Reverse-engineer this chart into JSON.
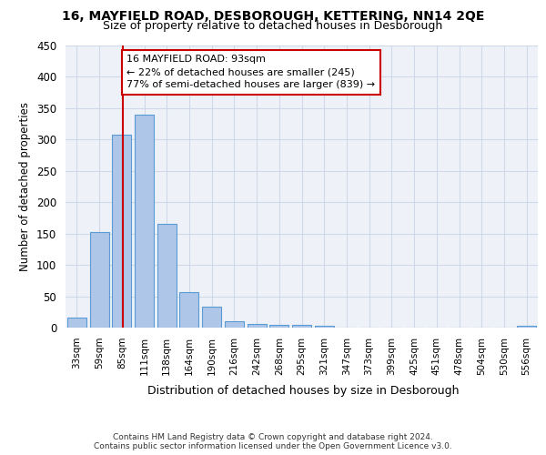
{
  "title1": "16, MAYFIELD ROAD, DESBOROUGH, KETTERING, NN14 2QE",
  "title2": "Size of property relative to detached houses in Desborough",
  "xlabel": "Distribution of detached houses by size in Desborough",
  "ylabel": "Number of detached properties",
  "bar_labels": [
    "33sqm",
    "59sqm",
    "85sqm",
    "111sqm",
    "138sqm",
    "164sqm",
    "190sqm",
    "216sqm",
    "242sqm",
    "268sqm",
    "295sqm",
    "321sqm",
    "347sqm",
    "373sqm",
    "399sqm",
    "425sqm",
    "451sqm",
    "478sqm",
    "504sqm",
    "530sqm",
    "556sqm"
  ],
  "bar_values": [
    16,
    152,
    308,
    340,
    165,
    57,
    34,
    10,
    6,
    4,
    5,
    3,
    0,
    0,
    0,
    0,
    0,
    0,
    0,
    0,
    3
  ],
  "bar_color": "#aec6e8",
  "bar_edge_color": "#5b9bd5",
  "property_label": "16 MAYFIELD ROAD: 93sqm",
  "annotation_line1": "← 22% of detached houses are smaller (245)",
  "annotation_line2": "77% of semi-detached houses are larger (839) →",
  "vline_color": "#cc0000",
  "vline_x_index": 2.04,
  "annotation_box_color": "#ffffff",
  "annotation_border_color": "#cc0000",
  "ylim": [
    0,
    450
  ],
  "yticks": [
    0,
    50,
    100,
    150,
    200,
    250,
    300,
    350,
    400,
    450
  ],
  "grid_color": "#d0d8e8",
  "background_color": "#eef2f8",
  "footer1": "Contains HM Land Registry data © Crown copyright and database right 2024.",
  "footer2": "Contains public sector information licensed under the Open Government Licence v3.0."
}
